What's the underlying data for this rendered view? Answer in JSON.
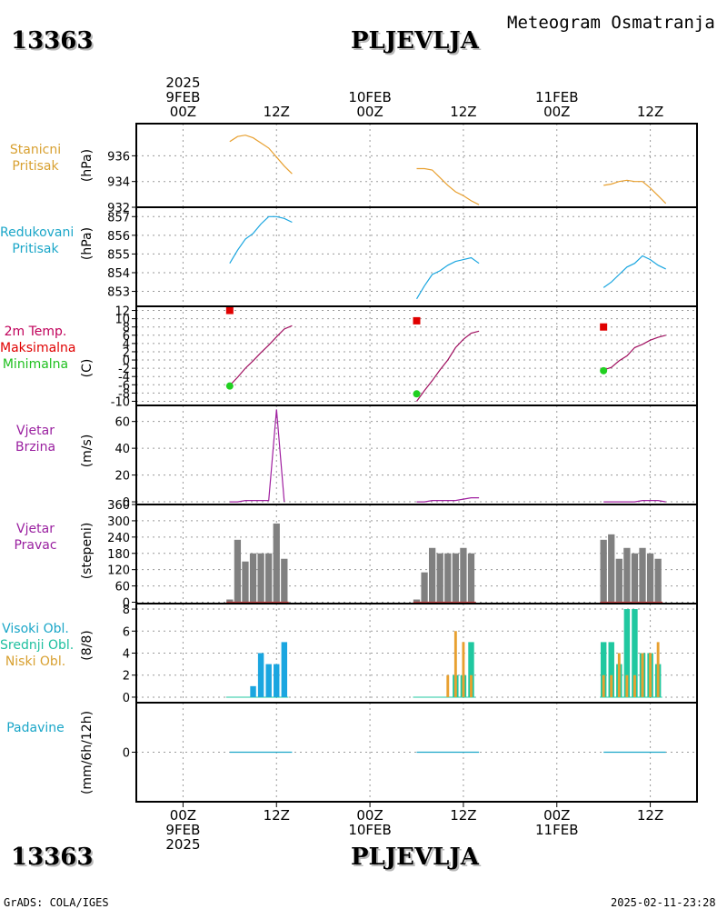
{
  "header": {
    "station_id": "13363",
    "station_name": "PLJEVLJA",
    "product": "Meteogram Osmatranja"
  },
  "footer": {
    "left": "GrADS: COLA/IGES",
    "right": "2025-02-11-23:28"
  },
  "time_axis_top": {
    "year": "2025",
    "ticks": [
      {
        "date": "9FEB",
        "hour": "00Z",
        "showYear": true
      },
      {
        "date": "",
        "hour": "12Z"
      },
      {
        "date": "10FEB",
        "hour": "00Z"
      },
      {
        "date": "",
        "hour": "12Z"
      },
      {
        "date": "11FEB",
        "hour": "00Z"
      },
      {
        "date": "",
        "hour": "12Z"
      }
    ]
  },
  "time_axis_bottom": {
    "year": "2025",
    "ticks": [
      {
        "date": "9FEB",
        "hour": "00Z",
        "showYear": true
      },
      {
        "date": "",
        "hour": "12Z"
      },
      {
        "date": "10FEB",
        "hour": "00Z"
      },
      {
        "date": "",
        "hour": "12Z"
      },
      {
        "date": "11FEB",
        "hour": "00Z"
      },
      {
        "date": "",
        "hour": "12Z"
      }
    ]
  },
  "panel_labels": {
    "pressure": [
      "Stanicni",
      "Pritisak"
    ],
    "pressure_colors": [
      "#d8a030",
      "#d8a030"
    ],
    "reduced": [
      "Redukovani",
      "Pritisak"
    ],
    "reduced_colors": [
      "#1aa6c8",
      "#1aa6c8"
    ],
    "temp": [
      "2m Temp.",
      "Maksimalna",
      "Minimalna"
    ],
    "temp_colors": [
      "#c0005a",
      "#e00000",
      "#20c020"
    ],
    "wind_speed": [
      "Vjetar",
      "Brzina"
    ],
    "wind_speed_colors": [
      "#9a20a0",
      "#9a20a0"
    ],
    "wind_dir": [
      "Vjetar",
      "Pravac"
    ],
    "wind_dir_colors": [
      "#9a20a0",
      "#9a20a0"
    ],
    "clouds": [
      "Visoki Obl.",
      "Srednji Obl.",
      "Niski Obl."
    ],
    "clouds_colors": [
      "#1aa6c8",
      "#20c0a0",
      "#d8a030"
    ],
    "precip": [
      "Padavine"
    ],
    "precip_colors": [
      "#1aa6c8"
    ]
  },
  "units": {
    "pressure": "(hPa)",
    "reduced": "(hPa)",
    "temp": "(C)",
    "wind_speed": "(m/s)",
    "wind_dir": "(stepeni)",
    "clouds": "(8/8)",
    "precip": "(mm/6h/12h)"
  },
  "colors": {
    "station_pressure": "#e8a030",
    "reduced_pressure": "#1aa6e0",
    "temperature": "#a01060",
    "tmax": "#e00000",
    "tmin": "#20d020",
    "wind_speed": "#a020a0",
    "wind_dir_bar": "#808080",
    "wind_dir_base": "#c04040",
    "cloud_high": "#1aa6e0",
    "cloud_mid": "#20c8a0",
    "cloud_low": "#e8a030",
    "precip": "#1aa6c8"
  },
  "chart_data": {
    "type": "line",
    "x_unit": "hours since 2025-02-09 00Z",
    "x_range": [
      -6,
      66
    ],
    "panels": [
      {
        "name": "station_pressure",
        "ylim": [
          932,
          938.5
        ],
        "yticks": [
          932,
          934,
          936
        ],
        "series": [
          {
            "x": [
              6,
              7,
              8,
              9,
              10,
              11,
              12,
              13,
              14
            ],
            "y": [
              937.1,
              937.5,
              937.6,
              937.4,
              937.0,
              936.6,
              935.9,
              935.2,
              934.6
            ]
          },
          {
            "x": [
              30,
              31,
              32,
              33,
              34,
              35,
              36,
              37,
              38
            ],
            "y": [
              935.0,
              935.0,
              934.9,
              934.3,
              933.7,
              933.2,
              932.9,
              932.5,
              932.2
            ]
          },
          {
            "x": [
              54,
              55,
              56,
              57,
              58,
              59,
              60,
              61,
              62
            ],
            "y": [
              933.7,
              933.8,
              934.0,
              934.1,
              934.0,
              934.0,
              933.5,
              932.9,
              932.3
            ]
          }
        ]
      },
      {
        "name": "reduced_pressure",
        "ylim": [
          852.2,
          857.5
        ],
        "yticks": [
          853,
          854,
          855,
          856,
          857
        ],
        "series": [
          {
            "x": [
              6,
              7,
              8,
              9,
              10,
              11,
              12,
              13,
              14
            ],
            "y": [
              854.5,
              855.2,
              855.8,
              856.1,
              856.6,
              857.0,
              857.0,
              856.9,
              856.7
            ]
          },
          {
            "x": [
              30,
              31,
              32,
              33,
              34,
              35,
              36,
              37,
              38
            ],
            "y": [
              852.6,
              853.3,
              853.9,
              854.1,
              854.4,
              854.6,
              854.7,
              854.8,
              854.5
            ]
          },
          {
            "x": [
              54,
              55,
              56,
              57,
              58,
              59,
              60,
              61,
              62
            ],
            "y": [
              853.2,
              853.5,
              853.9,
              854.3,
              854.5,
              854.9,
              854.7,
              854.4,
              854.2
            ]
          }
        ]
      },
      {
        "name": "temperature_2m",
        "ylim": [
          -11,
          13
        ],
        "yticks": [
          -10,
          -8,
          -6,
          -4,
          -2,
          0,
          2,
          4,
          6,
          8,
          10,
          12
        ],
        "series": [
          {
            "x": [
              6,
              7,
              8,
              9,
              10,
              11,
              12,
              13,
              14
            ],
            "y": [
              -6.2,
              -4.2,
              -2.0,
              -0.2,
              1.8,
              3.6,
              5.6,
              7.5,
              8.3
            ]
          },
          {
            "x": [
              30,
              31,
              32,
              33,
              34,
              35,
              36,
              37,
              38
            ],
            "y": [
              -10.0,
              -7.4,
              -5.0,
              -2.4,
              0.0,
              3.0,
              5.0,
              6.5,
              7.0
            ]
          },
          {
            "x": [
              54,
              55,
              56,
              57,
              58,
              59,
              60,
              61,
              62
            ],
            "y": [
              -2.4,
              -1.8,
              -0.2,
              1.0,
              3.0,
              3.8,
              4.8,
              5.5,
              6.0
            ]
          }
        ],
        "tmax": [
          {
            "x": 6,
            "y": 12
          },
          {
            "x": 30,
            "y": 9.5
          },
          {
            "x": 54,
            "y": 8
          }
        ],
        "tmin": [
          {
            "x": 6,
            "y": -6.3
          },
          {
            "x": 30,
            "y": -8.2
          },
          {
            "x": 54,
            "y": -2.6
          }
        ]
      },
      {
        "name": "wind_speed",
        "ylim": [
          -2,
          72
        ],
        "yticks": [
          0,
          20,
          40,
          60
        ],
        "series": [
          {
            "x": [
              6,
              7,
              8,
              9,
              10,
              11,
              12,
              13
            ],
            "y": [
              0,
              0,
              1,
              1,
              1,
              1,
              69,
              0
            ]
          },
          {
            "x": [
              30,
              31,
              32,
              33,
              34,
              35,
              36,
              37,
              38
            ],
            "y": [
              0,
              0,
              1,
              1,
              1,
              1,
              2,
              3,
              3
            ]
          },
          {
            "x": [
              54,
              55,
              56,
              57,
              58,
              59,
              60,
              61,
              62
            ],
            "y": [
              0,
              0,
              0,
              0,
              0,
              1,
              1,
              1,
              0
            ]
          }
        ]
      },
      {
        "name": "wind_direction",
        "ylim": [
          -5,
          360
        ],
        "yticks": [
          0,
          60,
          120,
          180,
          240,
          300,
          360
        ],
        "bars": {
          "x": [
            6,
            7,
            8,
            9,
            10,
            11,
            12,
            13,
            30,
            31,
            32,
            33,
            34,
            35,
            36,
            37,
            54,
            55,
            56,
            57,
            58,
            59,
            60,
            61
          ],
          "values": [
            10,
            230,
            150,
            180,
            180,
            180,
            290,
            160,
            10,
            110,
            200,
            180,
            180,
            180,
            200,
            180,
            230,
            250,
            160,
            200,
            180,
            200,
            180,
            160
          ]
        }
      },
      {
        "name": "cloud_cover",
        "ylim": [
          -0.5,
          8.5
        ],
        "yticks": [
          0,
          2,
          4,
          6,
          8
        ],
        "high": {
          "x": [
            6,
            7,
            8,
            9,
            10,
            11,
            12,
            13
          ],
          "values": [
            0,
            0,
            0,
            1,
            4,
            3,
            3,
            5
          ]
        },
        "mid": {
          "x": [
            30,
            31,
            32,
            33,
            34,
            35,
            36,
            37,
            54,
            55,
            56,
            57,
            58,
            59,
            60,
            61
          ],
          "values": [
            0,
            0,
            0,
            0,
            0,
            2,
            2,
            5,
            5,
            5,
            3,
            8,
            8,
            4,
            4,
            3
          ]
        },
        "low": {
          "x": [
            30,
            31,
            32,
            33,
            34,
            35,
            36,
            37,
            54,
            55,
            56,
            57,
            58,
            59,
            60,
            61
          ],
          "values": [
            0,
            0,
            0,
            0,
            2,
            6,
            5,
            2,
            2,
            2,
            4,
            2,
            2,
            4,
            4,
            5
          ]
        }
      },
      {
        "name": "precipitation",
        "ylim": [
          -2,
          2
        ],
        "yticks": [
          0
        ],
        "series": [
          {
            "x": [
              6,
              14
            ],
            "y": [
              0,
              0
            ]
          },
          {
            "x": [
              30,
              38
            ],
            "y": [
              0,
              0
            ]
          },
          {
            "x": [
              54,
              62
            ],
            "y": [
              0,
              0
            ]
          }
        ]
      }
    ]
  }
}
